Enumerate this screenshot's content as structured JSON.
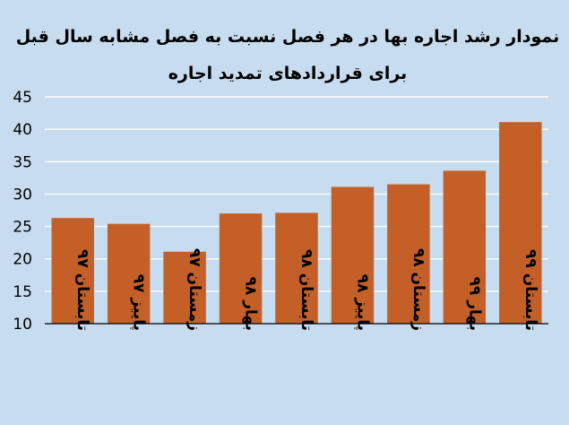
{
  "chart_data": {
    "type": "bar",
    "title": [
      "نمودار رشد اجاره بها در هر فصل نسبت به فصل مشابه سال قبل",
      "برای قراردادهای تمدید اجاره"
    ],
    "categories": [
      "تابستان ۹۷",
      "پاییز ۹۷",
      "زمستان ۹۷",
      "بهار ۹۸",
      "تابستان ۹۸",
      "پاییز ۹۸",
      "زمستان ۹۸",
      "بهار ۹۹",
      "تابستان ۹۹"
    ],
    "values": [
      26.3,
      25.4,
      21.1,
      27.0,
      27.1,
      31.1,
      31.5,
      33.6,
      41.1
    ],
    "ylim": [
      10,
      45
    ],
    "yticks": [
      10,
      15,
      20,
      25,
      30,
      35,
      40,
      45
    ],
    "grid": true,
    "legend": "none",
    "xlabel": "",
    "ylabel": "",
    "colors": {
      "bar": "#c45f28",
      "background": "#c7dcef",
      "grid": "#ffffff",
      "axis": "#000000"
    }
  }
}
